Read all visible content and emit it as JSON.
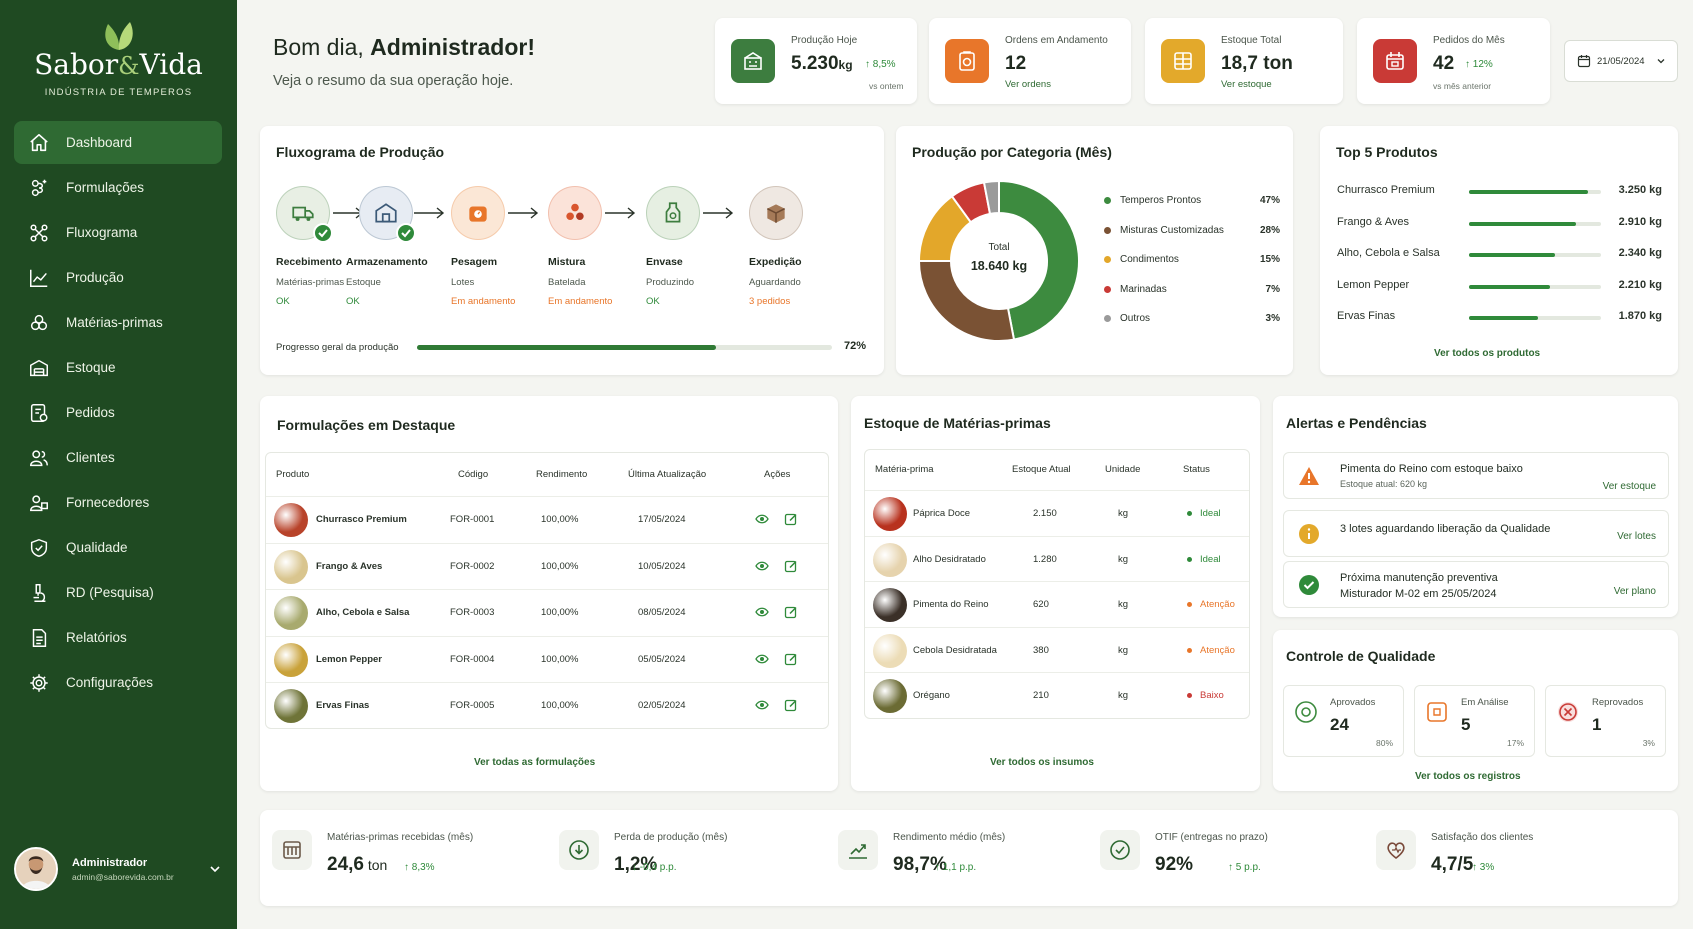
{
  "brand": {
    "name_part1": "Sabor",
    "amp": "&",
    "name_part2": "Vida",
    "tagline": "INDÚSTRIA DE TEMPEROS"
  },
  "sidebar": {
    "items": [
      {
        "label": "Dashboard",
        "icon": "home-icon",
        "active": true
      },
      {
        "label": "Formulações",
        "icon": "flask-icon"
      },
      {
        "label": "Fluxograma",
        "icon": "flow-icon"
      },
      {
        "label": "Produção",
        "icon": "chart-line-icon"
      },
      {
        "label": "Matérias-primas",
        "icon": "ingredients-icon"
      },
      {
        "label": "Estoque",
        "icon": "warehouse-icon"
      },
      {
        "label": "Pedidos",
        "icon": "orders-icon"
      },
      {
        "label": "Clientes",
        "icon": "users-icon"
      },
      {
        "label": "Fornecedores",
        "icon": "suppliers-icon"
      },
      {
        "label": "Qualidade",
        "icon": "shield-check-icon"
      },
      {
        "label": "RD (Pesquisa)",
        "icon": "microscope-icon"
      },
      {
        "label": "Relatórios",
        "icon": "document-icon"
      },
      {
        "label": "Configurações",
        "icon": "gear-icon"
      }
    ],
    "user": {
      "name": "Administrador",
      "email": "admin@saborevida.com.br"
    }
  },
  "greeting": {
    "prefix": "Bom dia, ",
    "name": "Administrador!",
    "subtitle": "Veja o resumo da sua operação hoje."
  },
  "kpis": [
    {
      "label": "Produção Hoje",
      "value": "5.230",
      "unit": "kg",
      "trend": "↑ 8,5%",
      "sub": "vs ontem",
      "color": "#3d7d3f"
    },
    {
      "label": "Ordens em Andamento",
      "value": "12",
      "link": "Ver ordens",
      "color": "#e8762a"
    },
    {
      "label": "Estoque Total",
      "value": "18,7 ton",
      "link": "Ver estoque",
      "color": "#e3a92b"
    },
    {
      "label": "Pedidos do Mês",
      "value": "42",
      "trend": "↑ 12%",
      "sub": "vs mês anterior",
      "color": "#c93a36"
    }
  ],
  "date_picker": {
    "value": "21/05/2024"
  },
  "flow": {
    "title": "Fluxograma de Produção",
    "steps": [
      {
        "title": "Recebimento",
        "desc": "Matérias-primas",
        "status": "OK",
        "status_color": "#2f8a3a",
        "done": true,
        "icon": "truck-icon",
        "bg": "#e8efe4",
        "fg": "#3d7d3f"
      },
      {
        "title": "Armazenamento",
        "desc": "Estoque",
        "status": "OK",
        "status_color": "#2f8a3a",
        "done": true,
        "icon": "warehouse-icon",
        "bg": "#e7ecf3",
        "fg": "#3c5a78"
      },
      {
        "title": "Pesagem",
        "desc": "Lotes",
        "status": "Em andamento",
        "status_color": "#e8762a",
        "done": false,
        "icon": "scale-icon",
        "bg": "#fbe7d6",
        "fg": "#e8762a"
      },
      {
        "title": "Mistura",
        "desc": "Batelada",
        "status": "Em andamento",
        "status_color": "#e8762a",
        "done": false,
        "icon": "mix-icon",
        "bg": "#fbe3d9",
        "fg": "#d9562e"
      },
      {
        "title": "Envase",
        "desc": "Produzindo",
        "status": "OK",
        "status_color": "#2f8a3a",
        "done": false,
        "icon": "jar-icon",
        "bg": "#e6efe2",
        "fg": "#3d7d3f"
      },
      {
        "title": "Expedição",
        "desc": "Aguardando",
        "status": "3 pedidos",
        "status_color": "#e8762a",
        "done": false,
        "icon": "box-icon",
        "bg": "#efe8e2",
        "fg": "#7a5a44"
      }
    ],
    "progress_label": "Progresso geral da produção",
    "progress_value": 72,
    "progress_text": "72%"
  },
  "category": {
    "title": "Produção por Categoria (Mês)",
    "total_label": "Total",
    "total_value": "18.640 kg"
  },
  "chart_data": {
    "type": "pie",
    "title": "Produção por Categoria (Mês)",
    "categories": [
      "Temperos Prontos",
      "Misturas Customizadas",
      "Condimentos",
      "Marinadas",
      "Outros"
    ],
    "values": [
      47,
      28,
      15,
      7,
      3
    ],
    "labels": [
      "47%",
      "28%",
      "15%",
      "7%",
      "3%"
    ],
    "colors": [
      "#3d8b3f",
      "#7a5234",
      "#e3a72a",
      "#c93a36",
      "#9a9a9a"
    ],
    "legend": "right"
  },
  "top_products": {
    "title": "Top 5 Produtos",
    "items": [
      {
        "name": "Churrasco Premium",
        "value": "3.250 kg",
        "qty": 3250
      },
      {
        "name": "Frango & Aves",
        "value": "2.910 kg",
        "qty": 2910
      },
      {
        "name": "Alho, Cebola e Salsa",
        "value": "2.340 kg",
        "qty": 2340
      },
      {
        "name": "Lemon Pepper",
        "value": "2.210 kg",
        "qty": 2210
      },
      {
        "name": "Ervas Finas",
        "value": "1.870 kg",
        "qty": 1870
      }
    ],
    "link": "Ver todos os produtos"
  },
  "formulations": {
    "title": "Formulações em Destaque",
    "columns": [
      "Produto",
      "Código",
      "Rendimento",
      "Última Atualização",
      "Ações"
    ],
    "rows": [
      {
        "product": "Churrasco Premium",
        "code": "FOR-0001",
        "yield": "100,00%",
        "updated": "17/05/2024",
        "color": "#b8432a"
      },
      {
        "product": "Frango & Aves",
        "code": "FOR-0002",
        "yield": "100,00%",
        "updated": "10/05/2024",
        "color": "#d9c58e"
      },
      {
        "product": "Alho, Cebola e Salsa",
        "code": "FOR-0003",
        "yield": "100,00%",
        "updated": "08/05/2024",
        "color": "#a8aa6e"
      },
      {
        "product": "Lemon Pepper",
        "code": "FOR-0004",
        "yield": "100,00%",
        "updated": "05/05/2024",
        "color": "#c9a23a"
      },
      {
        "product": "Ervas Finas",
        "code": "FOR-0005",
        "yield": "100,00%",
        "updated": "02/05/2024",
        "color": "#6f7438"
      }
    ],
    "link": "Ver todas as formulações"
  },
  "raw_materials": {
    "title": "Estoque de Matérias-primas",
    "columns": [
      "Matéria-prima",
      "Estoque Atual",
      "Unidade",
      "Status"
    ],
    "rows": [
      {
        "name": "Páprica Doce",
        "stock": "2.150",
        "unit": "kg",
        "status": "Ideal",
        "status_color": "#2f8a3a",
        "color": "#b8321e"
      },
      {
        "name": "Alho Desidratado",
        "stock": "1.280",
        "unit": "kg",
        "status": "Ideal",
        "status_color": "#2f8a3a",
        "color": "#e6d3ad"
      },
      {
        "name": "Pimenta do Reino",
        "stock": "620",
        "unit": "kg",
        "status": "Atenção",
        "status_color": "#e8762a",
        "color": "#3b3028"
      },
      {
        "name": "Cebola Desidratada",
        "stock": "380",
        "unit": "kg",
        "status": "Atenção",
        "status_color": "#e8762a",
        "color": "#ecdcb6"
      },
      {
        "name": "Orégano",
        "stock": "210",
        "unit": "kg",
        "status": "Baixo",
        "status_color": "#c93a36",
        "color": "#6b6b34"
      }
    ],
    "link": "Ver todos os insumos"
  },
  "alerts": {
    "title": "Alertas e Pendências",
    "items": [
      {
        "title": "Pimenta do Reino com estoque baixo",
        "sub": "Estoque atual: 620 kg",
        "link": "Ver estoque",
        "icon": "warning-icon"
      },
      {
        "title": "3 lotes aguardando liberação da Qualidade",
        "sub": "",
        "link": "Ver lotes",
        "icon": "info-icon"
      },
      {
        "title": "Próxima manutenção preventiva",
        "sub": "Misturador M-02 em 25/05/2024",
        "link": "Ver plano",
        "icon": "check-circle-icon"
      }
    ]
  },
  "quality": {
    "title": "Controle de Qualidade",
    "items": [
      {
        "label": "Aprovados",
        "value": "24",
        "pct": "80%",
        "icon": "approved-icon",
        "color": "#3d8b3f"
      },
      {
        "label": "Em Análise",
        "value": "5",
        "pct": "17%",
        "icon": "analysis-icon",
        "color": "#e8762a"
      },
      {
        "label": "Reprovados",
        "value": "1",
        "pct": "3%",
        "icon": "rejected-icon",
        "color": "#c93a36"
      }
    ],
    "link": "Ver todos os registros"
  },
  "bottom_kpis": [
    {
      "label": "Matérias-primas recebidas (mês)",
      "value": "24,6",
      "unit": " ton",
      "trend": "↑ 8,3%",
      "icon": "warehouse-icon"
    },
    {
      "label": "Perda de produção (mês)",
      "value": "1,2%",
      "unit": "",
      "trend": "↓ -0,4 p.p.",
      "icon": "loss-icon"
    },
    {
      "label": "Rendimento médio (mês)",
      "value": "98,7%",
      "unit": "",
      "trend": "↑ 1,1 p.p.",
      "icon": "trend-up-icon"
    },
    {
      "label": "OTIF (entregas no prazo)",
      "value": "92%",
      "unit": "",
      "trend": "↑ 5 p.p.",
      "icon": "check-icon"
    },
    {
      "label": "Satisfação dos clientes",
      "value": "4,7/5",
      "unit": "",
      "trend": "↑ 3%",
      "icon": "heart-icon"
    }
  ]
}
